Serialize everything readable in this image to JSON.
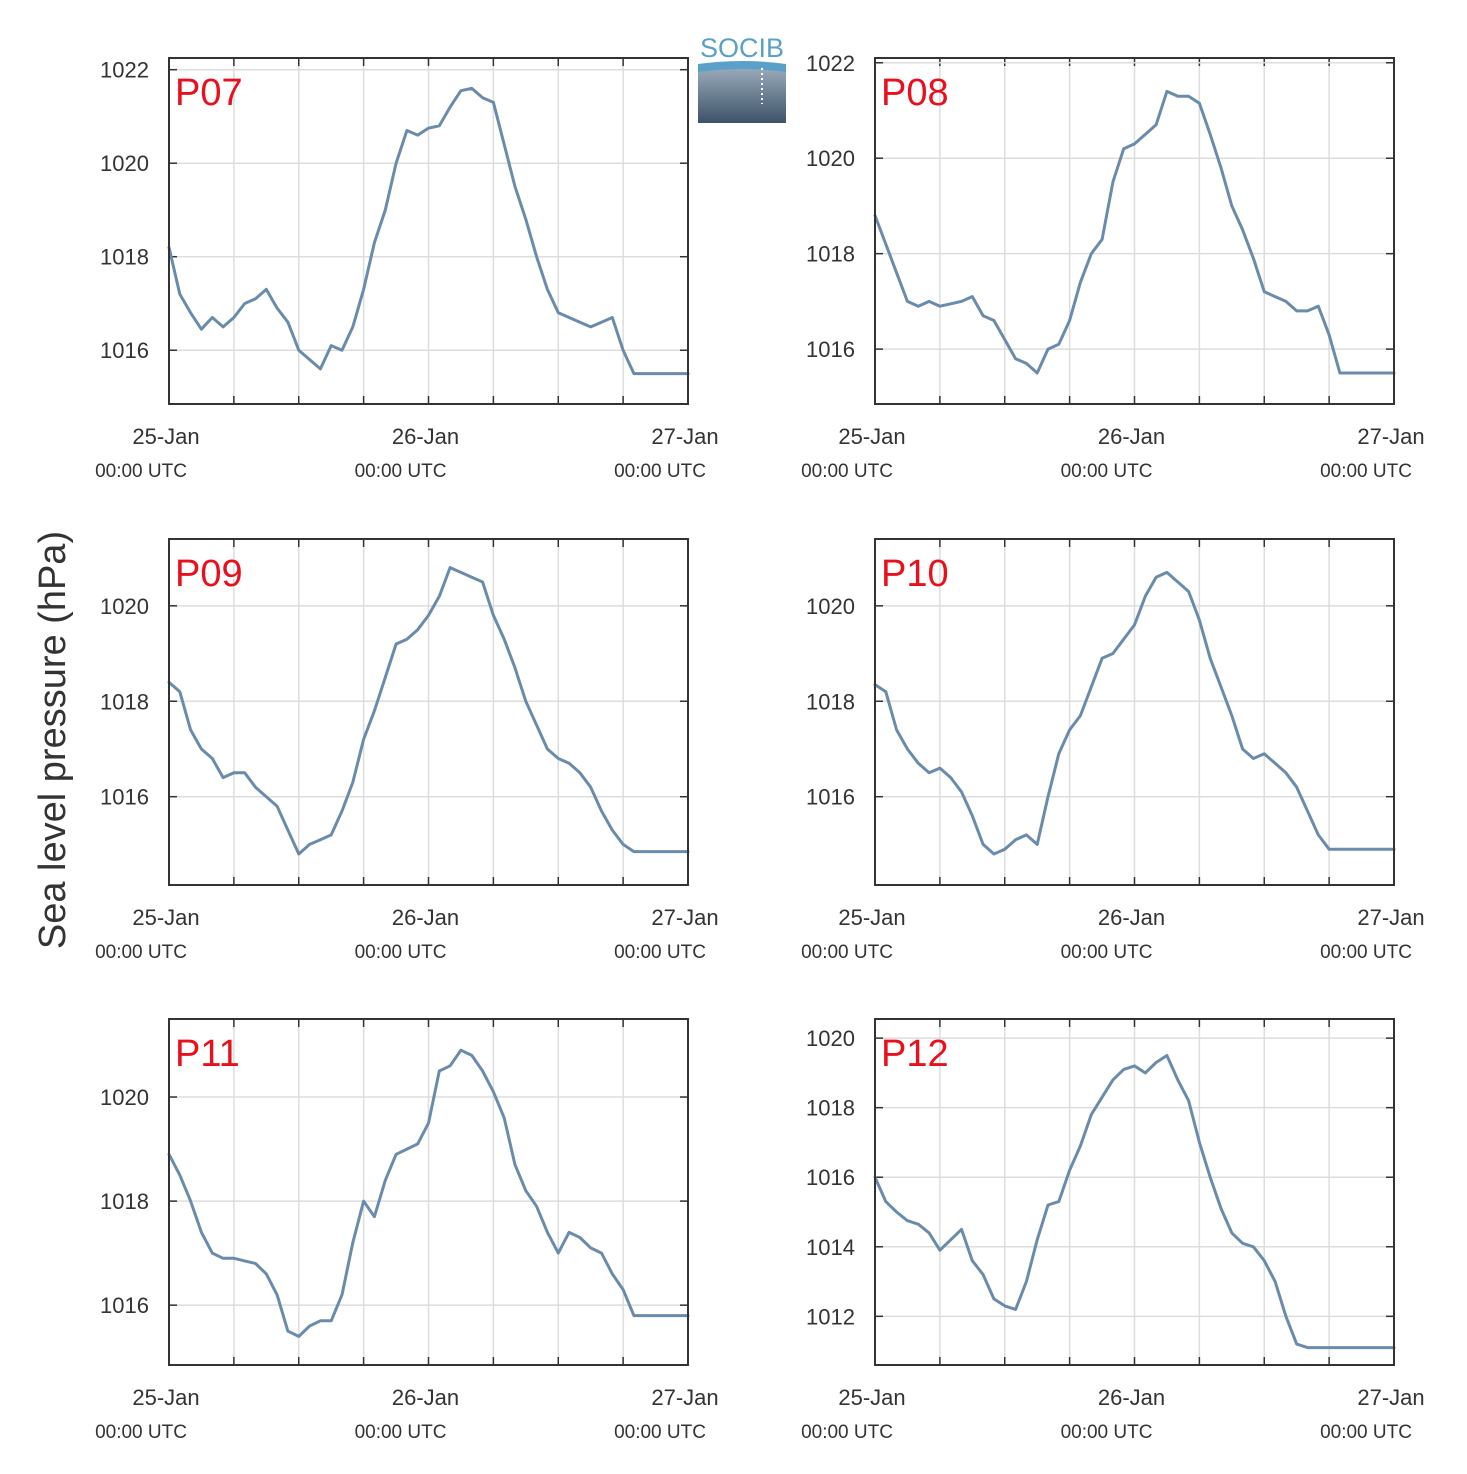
{
  "ylabel": "Sea level pressure (hPa)",
  "logo": {
    "text": "SOCIB"
  },
  "colors": {
    "line": "#6a8bab",
    "panel_label": "#e8101c",
    "grid": "#dddddd",
    "axis": "#333333",
    "logo_blue": "#5aa0c8"
  },
  "chart_data": [
    {
      "type": "line",
      "title": "P07",
      "xlabel": "",
      "grid": true,
      "ylim": [
        1014.85,
        1022.25
      ],
      "yticks": [
        1016,
        1018,
        1020,
        1022
      ],
      "xticks": [
        {
          "x": 0,
          "label": "25-Jan",
          "sub": "00:00 UTC"
        },
        {
          "x": 24,
          "label": "26-Jan",
          "sub": "00:00 UTC"
        },
        {
          "x": 48,
          "label": "27-Jan",
          "sub": "00:00 UTC"
        }
      ],
      "x": [
        0,
        1,
        2,
        3,
        4,
        5,
        6,
        7,
        8,
        9,
        10,
        11,
        12,
        13,
        14,
        15,
        16,
        17,
        18,
        19,
        20,
        21,
        22,
        23,
        24,
        25,
        26,
        27,
        28,
        29,
        30,
        31,
        32,
        33,
        34,
        35,
        36,
        37,
        38,
        39,
        40,
        41,
        42,
        43,
        44,
        45,
        46,
        47,
        48
      ],
      "values": [
        1018.2,
        1017.2,
        1016.8,
        1016.45,
        1016.7,
        1016.5,
        1016.7,
        1017.0,
        1017.1,
        1017.3,
        1016.9,
        1016.6,
        1016.0,
        1015.8,
        1015.6,
        1016.1,
        1016.0,
        1016.5,
        1017.3,
        1018.3,
        1019.0,
        1020.0,
        1020.7,
        1020.6,
        1020.75,
        1020.8,
        1021.2,
        1021.55,
        1021.6,
        1021.4,
        1021.3,
        1020.4,
        1019.5,
        1018.8,
        1018.0,
        1017.3,
        1016.8,
        1016.7,
        1016.6,
        1016.5,
        1016.6,
        1016.7,
        1016.0,
        1015.5,
        1015.5,
        1015.5,
        1015.5,
        1015.5,
        1015.5
      ]
    },
    {
      "type": "line",
      "title": "P08",
      "xlabel": "",
      "grid": true,
      "ylim": [
        1014.85,
        1022.1
      ],
      "yticks": [
        1016,
        1018,
        1020,
        1022
      ],
      "xticks": [
        {
          "x": 0,
          "label": "25-Jan",
          "sub": "00:00 UTC"
        },
        {
          "x": 24,
          "label": "26-Jan",
          "sub": "00:00 UTC"
        },
        {
          "x": 48,
          "label": "27-Jan",
          "sub": "00:00 UTC"
        }
      ],
      "x": [
        0,
        1,
        2,
        3,
        4,
        5,
        6,
        7,
        8,
        9,
        10,
        11,
        12,
        13,
        14,
        15,
        16,
        17,
        18,
        19,
        20,
        21,
        22,
        23,
        24,
        25,
        26,
        27,
        28,
        29,
        30,
        31,
        32,
        33,
        34,
        35,
        36,
        37,
        38,
        39,
        40,
        41,
        42,
        43,
        44,
        45,
        46,
        47,
        48
      ],
      "values": [
        1018.8,
        1018.2,
        1017.6,
        1017.0,
        1016.9,
        1017.0,
        1016.9,
        1016.95,
        1017.0,
        1017.1,
        1016.7,
        1016.6,
        1016.2,
        1015.8,
        1015.7,
        1015.5,
        1016.0,
        1016.1,
        1016.6,
        1017.4,
        1018.0,
        1018.3,
        1019.5,
        1020.2,
        1020.3,
        1020.5,
        1020.7,
        1021.4,
        1021.3,
        1021.3,
        1021.15,
        1020.5,
        1019.8,
        1019.0,
        1018.5,
        1017.9,
        1017.2,
        1017.1,
        1017.0,
        1016.8,
        1016.8,
        1016.9,
        1016.3,
        1015.5,
        1015.5,
        1015.5,
        1015.5,
        1015.5,
        1015.5
      ]
    },
    {
      "type": "line",
      "title": "P09",
      "xlabel": "",
      "grid": true,
      "ylim": [
        1014.15,
        1021.4
      ],
      "yticks": [
        1016,
        1018,
        1020
      ],
      "xticks": [
        {
          "x": 0,
          "label": "25-Jan",
          "sub": "00:00 UTC"
        },
        {
          "x": 24,
          "label": "26-Jan",
          "sub": "00:00 UTC"
        },
        {
          "x": 48,
          "label": "27-Jan",
          "sub": "00:00 UTC"
        }
      ],
      "x": [
        0,
        1,
        2,
        3,
        4,
        5,
        6,
        7,
        8,
        9,
        10,
        11,
        12,
        13,
        14,
        15,
        16,
        17,
        18,
        19,
        20,
        21,
        22,
        23,
        24,
        25,
        26,
        27,
        28,
        29,
        30,
        31,
        32,
        33,
        34,
        35,
        36,
        37,
        38,
        39,
        40,
        41,
        42,
        43,
        44,
        45,
        46,
        47,
        48
      ],
      "values": [
        1018.4,
        1018.2,
        1017.4,
        1017.0,
        1016.8,
        1016.4,
        1016.5,
        1016.5,
        1016.2,
        1016.0,
        1015.8,
        1015.3,
        1014.8,
        1015.0,
        1015.1,
        1015.2,
        1015.7,
        1016.3,
        1017.2,
        1017.8,
        1018.5,
        1019.2,
        1019.3,
        1019.5,
        1019.8,
        1020.2,
        1020.8,
        1020.7,
        1020.6,
        1020.5,
        1019.8,
        1019.3,
        1018.7,
        1018.0,
        1017.5,
        1017.0,
        1016.8,
        1016.7,
        1016.5,
        1016.2,
        1015.7,
        1015.3,
        1015.0,
        1014.85,
        1014.85,
        1014.85,
        1014.85,
        1014.85,
        1014.85
      ]
    },
    {
      "type": "line",
      "title": "P10",
      "xlabel": "",
      "grid": true,
      "ylim": [
        1014.15,
        1021.4
      ],
      "yticks": [
        1016,
        1018,
        1020
      ],
      "xticks": [
        {
          "x": 0,
          "label": "25-Jan",
          "sub": "00:00 UTC"
        },
        {
          "x": 24,
          "label": "26-Jan",
          "sub": "00:00 UTC"
        },
        {
          "x": 48,
          "label": "27-Jan",
          "sub": "00:00 UTC"
        }
      ],
      "x": [
        0,
        1,
        2,
        3,
        4,
        5,
        6,
        7,
        8,
        9,
        10,
        11,
        12,
        13,
        14,
        15,
        16,
        17,
        18,
        19,
        20,
        21,
        22,
        23,
        24,
        25,
        26,
        27,
        28,
        29,
        30,
        31,
        32,
        33,
        34,
        35,
        36,
        37,
        38,
        39,
        40,
        41,
        42,
        43,
        44,
        45,
        46,
        47,
        48
      ],
      "values": [
        1018.35,
        1018.2,
        1017.4,
        1017.0,
        1016.7,
        1016.5,
        1016.6,
        1016.4,
        1016.1,
        1015.6,
        1015.0,
        1014.8,
        1014.9,
        1015.1,
        1015.2,
        1015.0,
        1016.0,
        1016.9,
        1017.4,
        1017.7,
        1018.3,
        1018.9,
        1019.0,
        1019.3,
        1019.6,
        1020.2,
        1020.6,
        1020.7,
        1020.5,
        1020.3,
        1019.7,
        1018.9,
        1018.3,
        1017.7,
        1017.0,
        1016.8,
        1016.9,
        1016.7,
        1016.5,
        1016.2,
        1015.7,
        1015.2,
        1014.9,
        1014.9,
        1014.9,
        1014.9,
        1014.9,
        1014.9,
        1014.9
      ]
    },
    {
      "type": "line",
      "title": "P11",
      "xlabel": "",
      "grid": true,
      "ylim": [
        1014.85,
        1021.5
      ],
      "yticks": [
        1016,
        1018,
        1020
      ],
      "xticks": [
        {
          "x": 0,
          "label": "25-Jan",
          "sub": "00:00 UTC"
        },
        {
          "x": 24,
          "label": "26-Jan",
          "sub": "00:00 UTC"
        },
        {
          "x": 48,
          "label": "27-Jan",
          "sub": "00:00 UTC"
        }
      ],
      "x": [
        0,
        1,
        2,
        3,
        4,
        5,
        6,
        7,
        8,
        9,
        10,
        11,
        12,
        13,
        14,
        15,
        16,
        17,
        18,
        19,
        20,
        21,
        22,
        23,
        24,
        25,
        26,
        27,
        28,
        29,
        30,
        31,
        32,
        33,
        34,
        35,
        36,
        37,
        38,
        39,
        40,
        41,
        42,
        43,
        44,
        45,
        46,
        47,
        48
      ],
      "values": [
        1018.9,
        1018.5,
        1018.0,
        1017.4,
        1017.0,
        1016.9,
        1016.9,
        1016.85,
        1016.8,
        1016.6,
        1016.2,
        1015.5,
        1015.4,
        1015.6,
        1015.7,
        1015.7,
        1016.2,
        1017.2,
        1018.0,
        1017.7,
        1018.4,
        1018.9,
        1019.0,
        1019.1,
        1019.5,
        1020.5,
        1020.6,
        1020.9,
        1020.8,
        1020.5,
        1020.1,
        1019.6,
        1018.7,
        1018.2,
        1017.9,
        1017.4,
        1017.0,
        1017.4,
        1017.3,
        1017.1,
        1017.0,
        1016.6,
        1016.3,
        1015.8,
        1015.8,
        1015.8,
        1015.8,
        1015.8,
        1015.8
      ]
    },
    {
      "type": "line",
      "title": "P12",
      "xlabel": "",
      "grid": true,
      "ylim": [
        1010.6,
        1020.55
      ],
      "yticks": [
        1012,
        1014,
        1016,
        1018,
        1020
      ],
      "xticks": [
        {
          "x": 0,
          "label": "25-Jan",
          "sub": "00:00 UTC"
        },
        {
          "x": 24,
          "label": "26-Jan",
          "sub": "00:00 UTC"
        },
        {
          "x": 48,
          "label": "27-Jan",
          "sub": "00:00 UTC"
        }
      ],
      "x": [
        0,
        1,
        2,
        3,
        4,
        5,
        6,
        7,
        8,
        9,
        10,
        11,
        12,
        13,
        14,
        15,
        16,
        17,
        18,
        19,
        20,
        21,
        22,
        23,
        24,
        25,
        26,
        27,
        28,
        29,
        30,
        31,
        32,
        33,
        34,
        35,
        36,
        37,
        38,
        39,
        40,
        41,
        42,
        43,
        44,
        45,
        46,
        47,
        48
      ],
      "values": [
        1016.0,
        1015.3,
        1015.0,
        1014.75,
        1014.65,
        1014.4,
        1013.9,
        1014.2,
        1014.5,
        1013.6,
        1013.2,
        1012.5,
        1012.3,
        1012.2,
        1013.0,
        1014.2,
        1015.2,
        1015.3,
        1016.2,
        1016.9,
        1017.8,
        1018.3,
        1018.8,
        1019.1,
        1019.2,
        1019.0,
        1019.3,
        1019.5,
        1018.8,
        1018.2,
        1017.0,
        1016.0,
        1015.1,
        1014.4,
        1014.1,
        1014.0,
        1013.6,
        1013.0,
        1012.0,
        1011.2,
        1011.1,
        1011.1,
        1011.1,
        1011.1,
        1011.1,
        1011.1,
        1011.1,
        1011.1,
        1011.1
      ]
    }
  ]
}
